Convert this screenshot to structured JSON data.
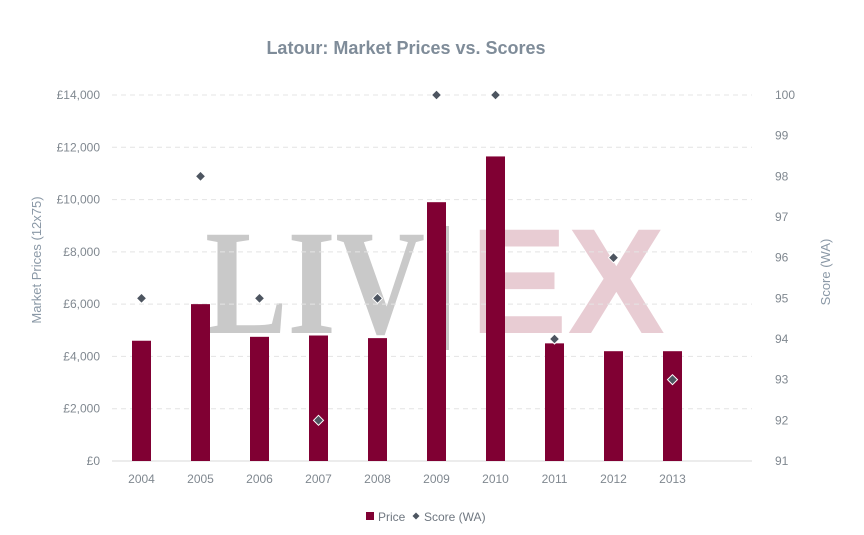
{
  "chart_data": {
    "type": "bar",
    "title": "Latour: Market Prices vs. Scores",
    "categories": [
      "2004",
      "2005",
      "2006",
      "2007",
      "2008",
      "2009",
      "2010",
      "2011",
      "2012",
      "2013"
    ],
    "series": [
      {
        "name": "Price",
        "kind": "bar",
        "axis": "left",
        "color": "#800033",
        "values": [
          4600,
          6000,
          4750,
          4800,
          4700,
          9900,
          11650,
          4500,
          4200,
          4200
        ]
      },
      {
        "name": "Score (WA)",
        "kind": "marker",
        "axis": "right",
        "color": "#4d5560",
        "values": [
          95,
          98,
          95,
          92,
          95,
          100,
          100,
          94,
          96,
          93
        ]
      }
    ],
    "ylabel": "Market Prices (12x75)",
    "y2label": "Score (WA)",
    "ylim": [
      0,
      14000
    ],
    "y2lim": [
      91,
      100
    ],
    "yticks": [
      "£0",
      "£2,000",
      "£4,000",
      "£6,000",
      "£8,000",
      "£10,000",
      "£12,000",
      "£14,000"
    ],
    "y2ticks": [
      "91",
      "92",
      "93",
      "94",
      "95",
      "96",
      "97",
      "98",
      "99",
      "100"
    ],
    "grid": true,
    "legend_position": "bottom"
  },
  "watermark": {
    "left_text": "LIV",
    "right_text": "EX"
  }
}
